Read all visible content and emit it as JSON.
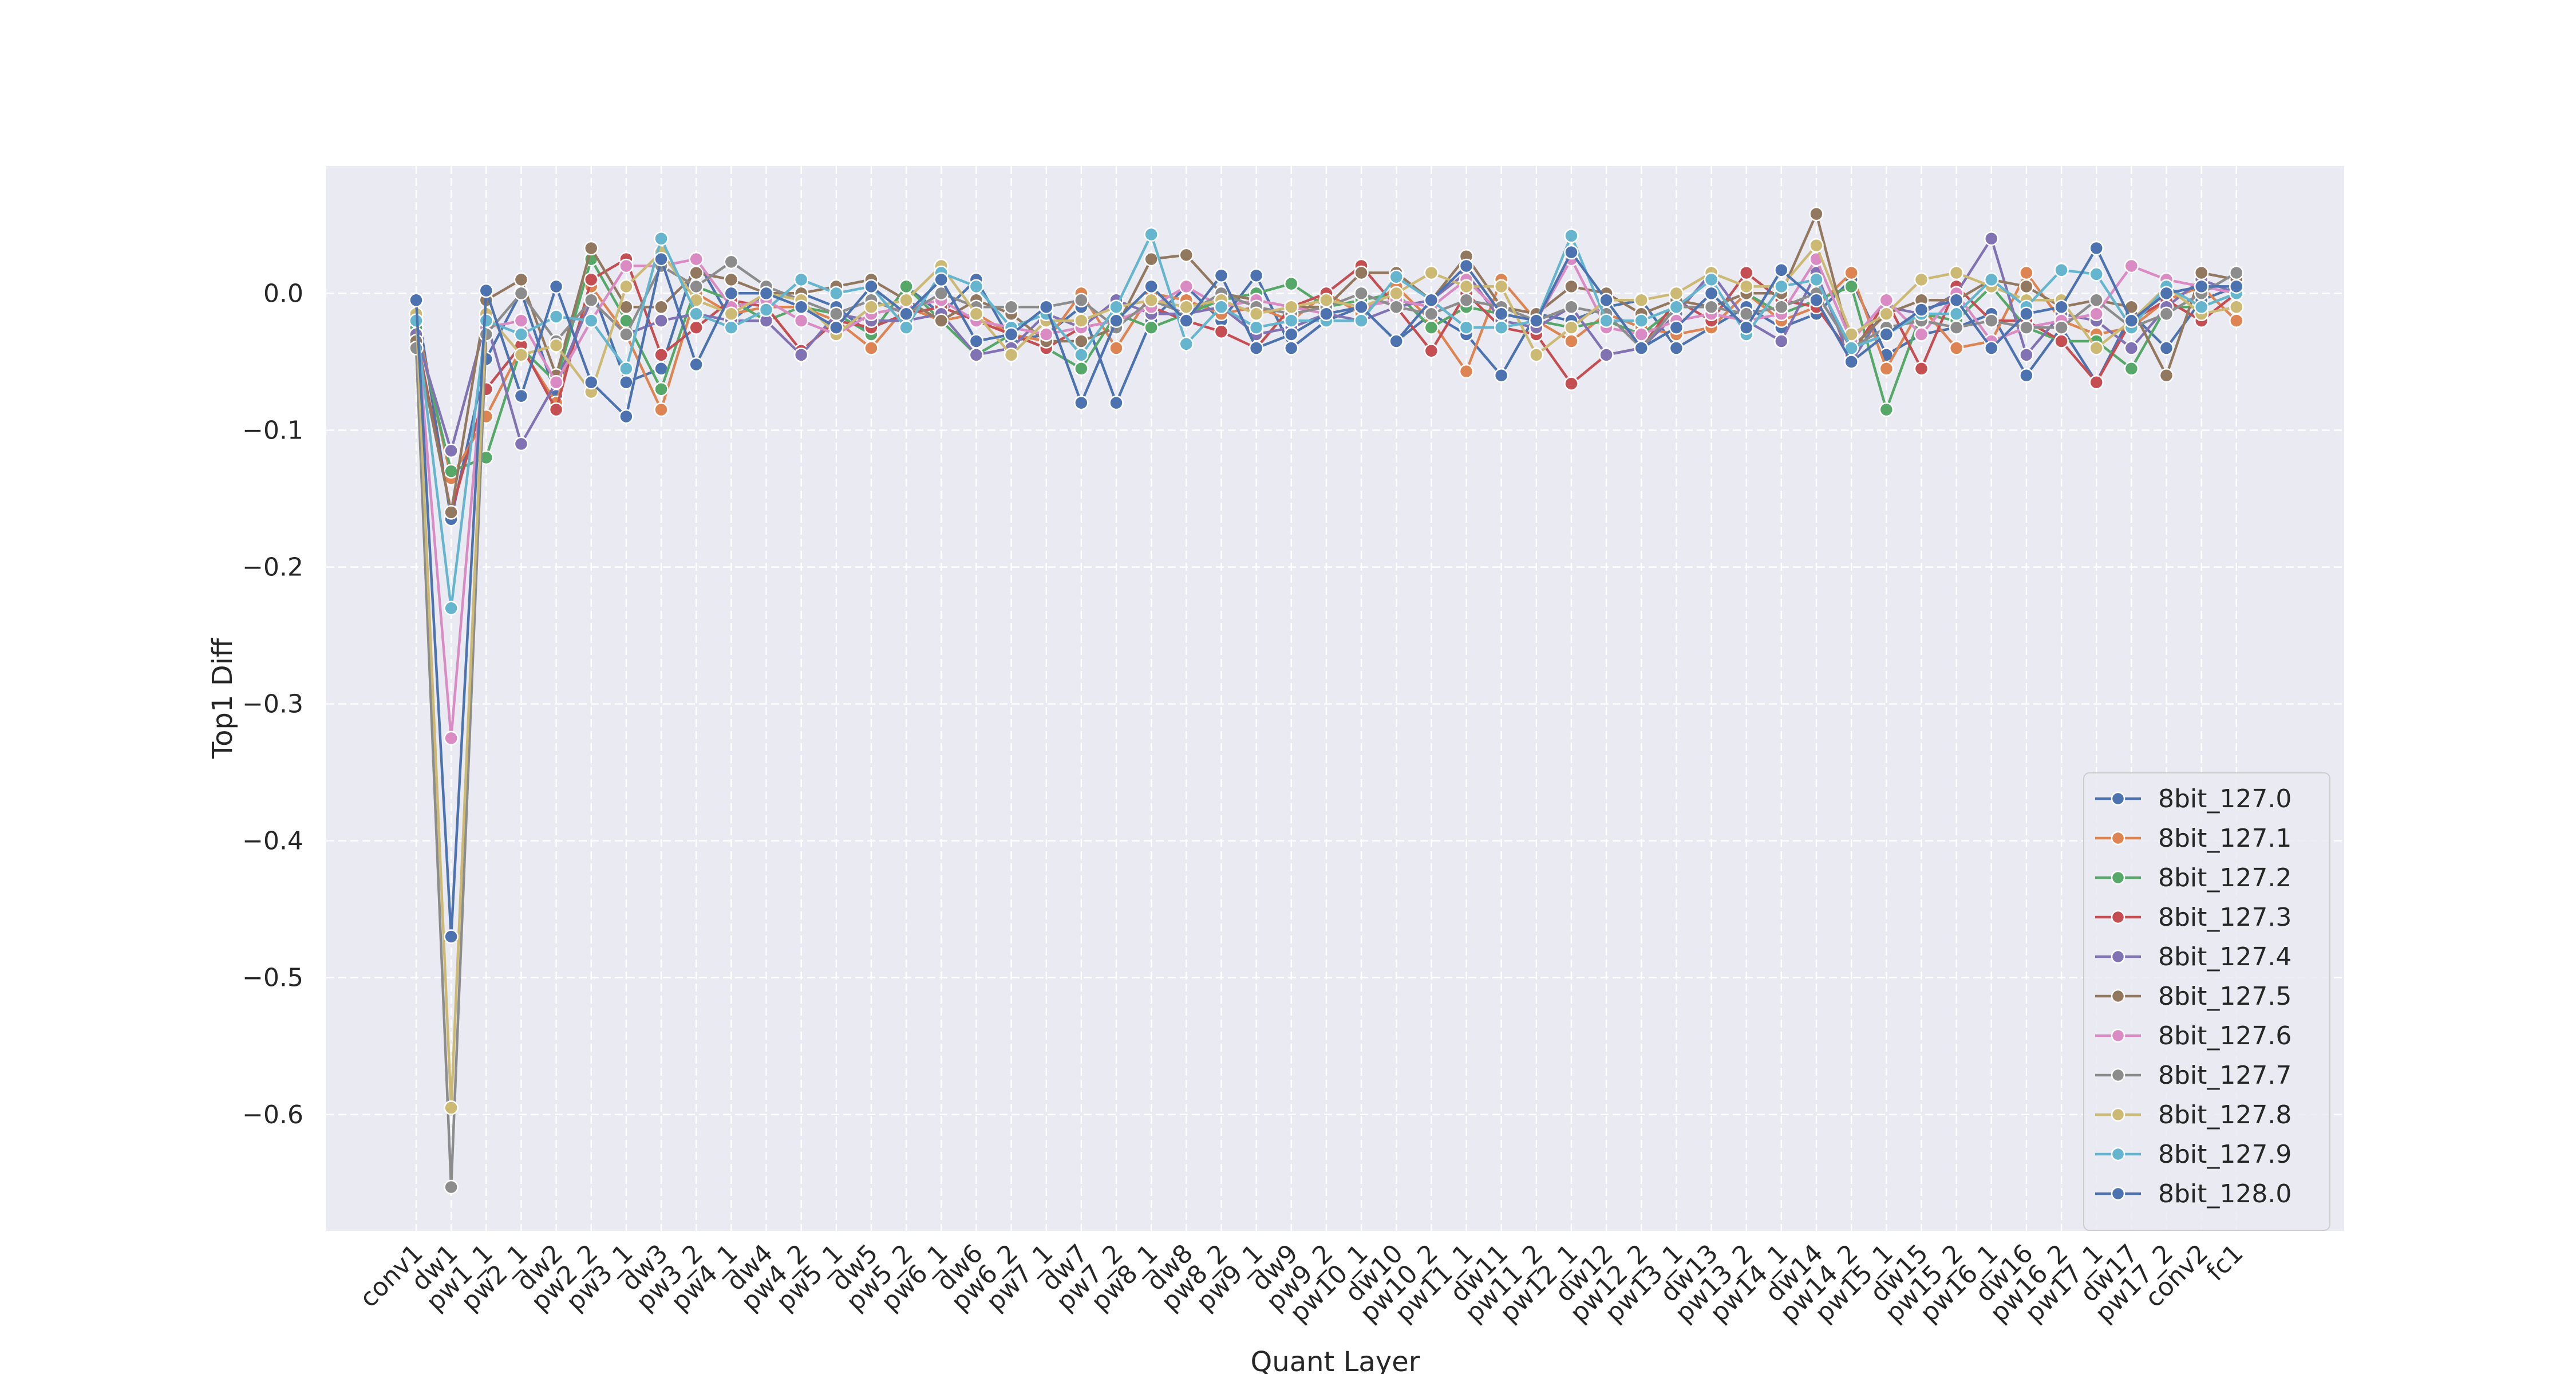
{
  "chart_data": {
    "type": "line",
    "xlabel": "Quant Layer",
    "ylabel": "Top1 Diff",
    "ylim": [
      -0.685,
      0.093
    ],
    "yticks": [
      0.0,
      -0.1,
      -0.2,
      -0.3,
      -0.4,
      -0.5,
      -0.6
    ],
    "ytick_labels": [
      "0.0",
      "−0.1",
      "−0.2",
      "−0.3",
      "−0.4",
      "−0.5",
      "−0.6"
    ],
    "grid": true,
    "legend_position": "lower-right",
    "categories": [
      "conv1",
      "dw1",
      "pw1_1",
      "pw2_1",
      "dw2",
      "pw2_2",
      "pw3_1",
      "dw3",
      "pw3_2",
      "pw4_1",
      "dw4",
      "pw4_2",
      "pw5_1",
      "dw5",
      "pw5_2",
      "pw6_1",
      "dw6",
      "pw6_2",
      "pw7_1",
      "dw7",
      "pw7_2",
      "pw8_1",
      "dw8",
      "pw8_2",
      "pw9_1",
      "dw9",
      "pw9_2",
      "pw10_1",
      "dw10",
      "pw10_2",
      "pw11_1",
      "dw11",
      "pw11_2",
      "pw12_1",
      "dw12",
      "pw12_2",
      "pw13_1",
      "dw13",
      "pw13_2",
      "pw14_1",
      "dw14",
      "pw14_2",
      "pw15_1",
      "dw15",
      "pw15_2",
      "pw16_1",
      "dw16",
      "pw16_2",
      "pw17_1",
      "dw17",
      "pw17_2",
      "conv2",
      "fc1"
    ],
    "series": [
      {
        "name": "8bit_127.0",
        "color": "#4c72b0",
        "values": [
          -0.005,
          -0.165,
          -0.048,
          0.001,
          -0.075,
          0.005,
          -0.065,
          -0.055,
          0.025,
          -0.02,
          0.0,
          0.0,
          -0.01,
          -0.03,
          0.005,
          -0.015,
          0.01,
          -0.035,
          -0.03,
          -0.01,
          -0.08,
          -0.02,
          0.005,
          -0.02,
          0.013,
          -0.04,
          -0.02,
          -0.01,
          -0.035,
          -0.015,
          -0.03,
          -0.06,
          -0.015,
          -0.02,
          -0.01,
          -0.005,
          -0.04,
          -0.025,
          -0.01,
          -0.025,
          -0.015,
          0.01,
          -0.045,
          -0.03,
          -0.025,
          -0.015,
          -0.06,
          -0.025,
          -0.065,
          -0.015,
          -0.04,
          -0.005,
          0.005
        ]
      },
      {
        "name": "8bit_127.1",
        "color": "#dd8452",
        "values": [
          -0.02,
          -0.135,
          -0.09,
          -0.04,
          -0.08,
          0.005,
          -0.03,
          -0.085,
          0.0,
          -0.015,
          -0.01,
          -0.01,
          -0.02,
          -0.04,
          -0.01,
          -0.02,
          -0.015,
          -0.03,
          -0.035,
          0.0,
          -0.04,
          0.0,
          -0.005,
          -0.015,
          -0.01,
          -0.02,
          0.0,
          -0.015,
          0.005,
          -0.02,
          -0.057,
          0.01,
          -0.02,
          -0.035,
          -0.015,
          -0.025,
          -0.03,
          -0.025,
          0.0,
          -0.02,
          -0.01,
          0.015,
          -0.055,
          -0.01,
          -0.04,
          -0.035,
          0.015,
          -0.02,
          -0.03,
          -0.025,
          -0.005,
          0.005,
          -0.02
        ]
      },
      {
        "name": "8bit_127.2",
        "color": "#55a868",
        "values": [
          -0.025,
          -0.13,
          -0.12,
          -0.04,
          -0.065,
          0.025,
          -0.02,
          -0.07,
          0.005,
          -0.005,
          -0.02,
          -0.01,
          -0.015,
          -0.03,
          0.005,
          -0.02,
          -0.045,
          -0.03,
          -0.04,
          -0.055,
          -0.015,
          -0.025,
          -0.015,
          -0.005,
          0.0,
          0.007,
          -0.01,
          -0.005,
          0.0,
          -0.025,
          -0.01,
          -0.015,
          -0.02,
          -0.025,
          -0.02,
          -0.03,
          -0.01,
          -0.01,
          0.0,
          -0.015,
          -0.005,
          0.005,
          -0.085,
          -0.015,
          -0.02,
          0.005,
          -0.025,
          -0.035,
          -0.035,
          -0.055,
          -0.01,
          -0.01,
          0.0
        ]
      },
      {
        "name": "8bit_127.3",
        "color": "#c44e52",
        "values": [
          -0.03,
          -0.16,
          -0.07,
          -0.038,
          -0.085,
          0.01,
          0.025,
          -0.045,
          -0.025,
          -0.005,
          -0.01,
          -0.042,
          -0.02,
          -0.025,
          -0.015,
          -0.01,
          -0.02,
          -0.03,
          -0.04,
          -0.025,
          -0.02,
          -0.01,
          -0.02,
          -0.028,
          -0.04,
          -0.01,
          0.0,
          0.02,
          -0.01,
          -0.042,
          0.0,
          -0.025,
          -0.03,
          -0.066,
          -0.045,
          -0.04,
          -0.005,
          -0.02,
          0.015,
          -0.005,
          -0.01,
          -0.045,
          -0.005,
          -0.055,
          0.005,
          -0.02,
          -0.02,
          -0.035,
          -0.065,
          -0.02,
          -0.005,
          -0.02,
          0.0
        ]
      },
      {
        "name": "8bit_127.4",
        "color": "#8172b3",
        "values": [
          -0.03,
          -0.115,
          -0.02,
          -0.11,
          -0.065,
          -0.005,
          -0.03,
          -0.02,
          -0.015,
          -0.02,
          -0.02,
          -0.045,
          -0.015,
          -0.02,
          -0.02,
          -0.015,
          -0.045,
          -0.04,
          -0.015,
          -0.025,
          -0.005,
          -0.015,
          -0.015,
          -0.01,
          -0.03,
          -0.025,
          -0.015,
          -0.02,
          -0.01,
          -0.005,
          0.015,
          -0.02,
          -0.025,
          -0.01,
          -0.045,
          -0.04,
          -0.015,
          0.015,
          -0.02,
          -0.035,
          0.015,
          -0.05,
          -0.01,
          -0.015,
          0.0,
          0.04,
          -0.045,
          -0.015,
          -0.02,
          -0.04,
          -0.01,
          0.01,
          0.0
        ]
      },
      {
        "name": "8bit_127.5",
        "color": "#937860",
        "values": [
          -0.035,
          -0.16,
          -0.005,
          0.01,
          -0.06,
          0.033,
          -0.01,
          -0.01,
          0.015,
          0.01,
          0.0,
          0.0,
          0.005,
          0.01,
          -0.005,
          -0.02,
          -0.005,
          -0.015,
          -0.035,
          -0.035,
          -0.025,
          0.025,
          0.028,
          0.0,
          -0.005,
          -0.01,
          -0.01,
          0.015,
          0.015,
          -0.005,
          0.027,
          -0.01,
          -0.015,
          0.005,
          0.0,
          -0.015,
          -0.005,
          -0.01,
          0.0,
          0.0,
          0.058,
          -0.04,
          -0.015,
          -0.005,
          -0.005,
          0.01,
          0.005,
          -0.01,
          -0.005,
          -0.01,
          -0.06,
          0.015,
          0.01
        ]
      },
      {
        "name": "8bit_127.6",
        "color": "#da8bc3",
        "values": [
          -0.02,
          -0.325,
          -0.025,
          -0.02,
          -0.065,
          -0.02,
          0.02,
          0.02,
          0.025,
          -0.01,
          -0.005,
          -0.02,
          -0.03,
          -0.015,
          -0.01,
          -0.005,
          -0.02,
          -0.025,
          -0.03,
          -0.025,
          -0.02,
          -0.01,
          0.005,
          -0.01,
          -0.005,
          -0.01,
          -0.015,
          -0.01,
          -0.005,
          -0.01,
          0.01,
          -0.015,
          -0.02,
          0.025,
          -0.025,
          -0.03,
          -0.02,
          -0.015,
          -0.02,
          -0.015,
          0.025,
          -0.035,
          -0.005,
          -0.03,
          0.0,
          -0.035,
          -0.025,
          -0.02,
          -0.015,
          0.02,
          0.01,
          0.005,
          0.0
        ]
      },
      {
        "name": "8bit_127.7",
        "color": "#8c8c8c",
        "values": [
          -0.04,
          -0.653,
          -0.03,
          0.0,
          -0.035,
          -0.005,
          -0.03,
          0.02,
          0.005,
          0.023,
          0.005,
          -0.005,
          -0.015,
          -0.005,
          -0.015,
          0.0,
          -0.01,
          -0.01,
          -0.01,
          -0.005,
          -0.025,
          -0.005,
          -0.015,
          0.0,
          -0.01,
          -0.015,
          -0.01,
          0.0,
          -0.01,
          -0.015,
          -0.005,
          -0.01,
          -0.02,
          -0.01,
          -0.015,
          -0.04,
          -0.01,
          -0.01,
          -0.015,
          -0.01,
          0.0,
          -0.04,
          -0.025,
          -0.02,
          -0.025,
          -0.02,
          -0.025,
          -0.025,
          -0.005,
          -0.025,
          -0.015,
          0.0,
          0.015
        ]
      },
      {
        "name": "8bit_127.8",
        "color": "#ccb974",
        "values": [
          -0.015,
          -0.595,
          -0.015,
          -0.045,
          -0.038,
          -0.072,
          0.005,
          0.03,
          -0.005,
          -0.015,
          0.0,
          -0.005,
          -0.03,
          -0.01,
          -0.005,
          0.02,
          -0.015,
          -0.045,
          -0.02,
          -0.02,
          -0.01,
          -0.005,
          -0.01,
          -0.005,
          -0.015,
          -0.01,
          -0.005,
          -0.01,
          0.0,
          0.015,
          0.005,
          0.005,
          -0.045,
          -0.025,
          -0.005,
          -0.005,
          0.0,
          0.015,
          0.005,
          0.005,
          0.035,
          -0.03,
          -0.015,
          0.01,
          0.015,
          0.005,
          -0.005,
          -0.005,
          -0.04,
          -0.02,
          0.005,
          -0.015,
          -0.01
        ]
      },
      {
        "name": "8bit_127.9",
        "color": "#64b5cd",
        "values": [
          -0.02,
          -0.23,
          -0.02,
          -0.03,
          -0.017,
          -0.02,
          -0.055,
          0.04,
          -0.015,
          -0.025,
          -0.012,
          0.01,
          0.0,
          0.005,
          -0.025,
          0.015,
          0.005,
          -0.025,
          -0.015,
          -0.045,
          -0.01,
          0.043,
          -0.037,
          -0.01,
          -0.025,
          -0.02,
          -0.02,
          -0.02,
          0.012,
          -0.005,
          -0.025,
          -0.025,
          -0.02,
          0.042,
          -0.02,
          -0.02,
          -0.01,
          0.01,
          -0.03,
          0.005,
          0.01,
          -0.04,
          -0.03,
          -0.015,
          -0.015,
          0.01,
          -0.01,
          0.017,
          0.014,
          -0.025,
          0.005,
          -0.01,
          0.0
        ]
      },
      {
        "name": "8bit_128.0",
        "color": "#4c72b0",
        "values": [
          -0.005,
          -0.47,
          0.002,
          -0.075,
          0.005,
          -0.065,
          -0.09,
          0.025,
          -0.052,
          0.0,
          0.0,
          -0.01,
          -0.025,
          0.005,
          -0.015,
          0.01,
          -0.035,
          -0.03,
          -0.01,
          -0.08,
          -0.02,
          0.005,
          -0.02,
          0.013,
          -0.04,
          -0.03,
          -0.015,
          -0.01,
          -0.035,
          -0.005,
          0.02,
          -0.015,
          -0.02,
          0.03,
          -0.005,
          -0.04,
          -0.025,
          0.0,
          -0.025,
          0.017,
          -0.005,
          -0.05,
          -0.03,
          -0.012,
          -0.005,
          -0.04,
          -0.015,
          -0.01,
          0.033,
          -0.02,
          0.0,
          0.005,
          0.005
        ]
      }
    ]
  }
}
